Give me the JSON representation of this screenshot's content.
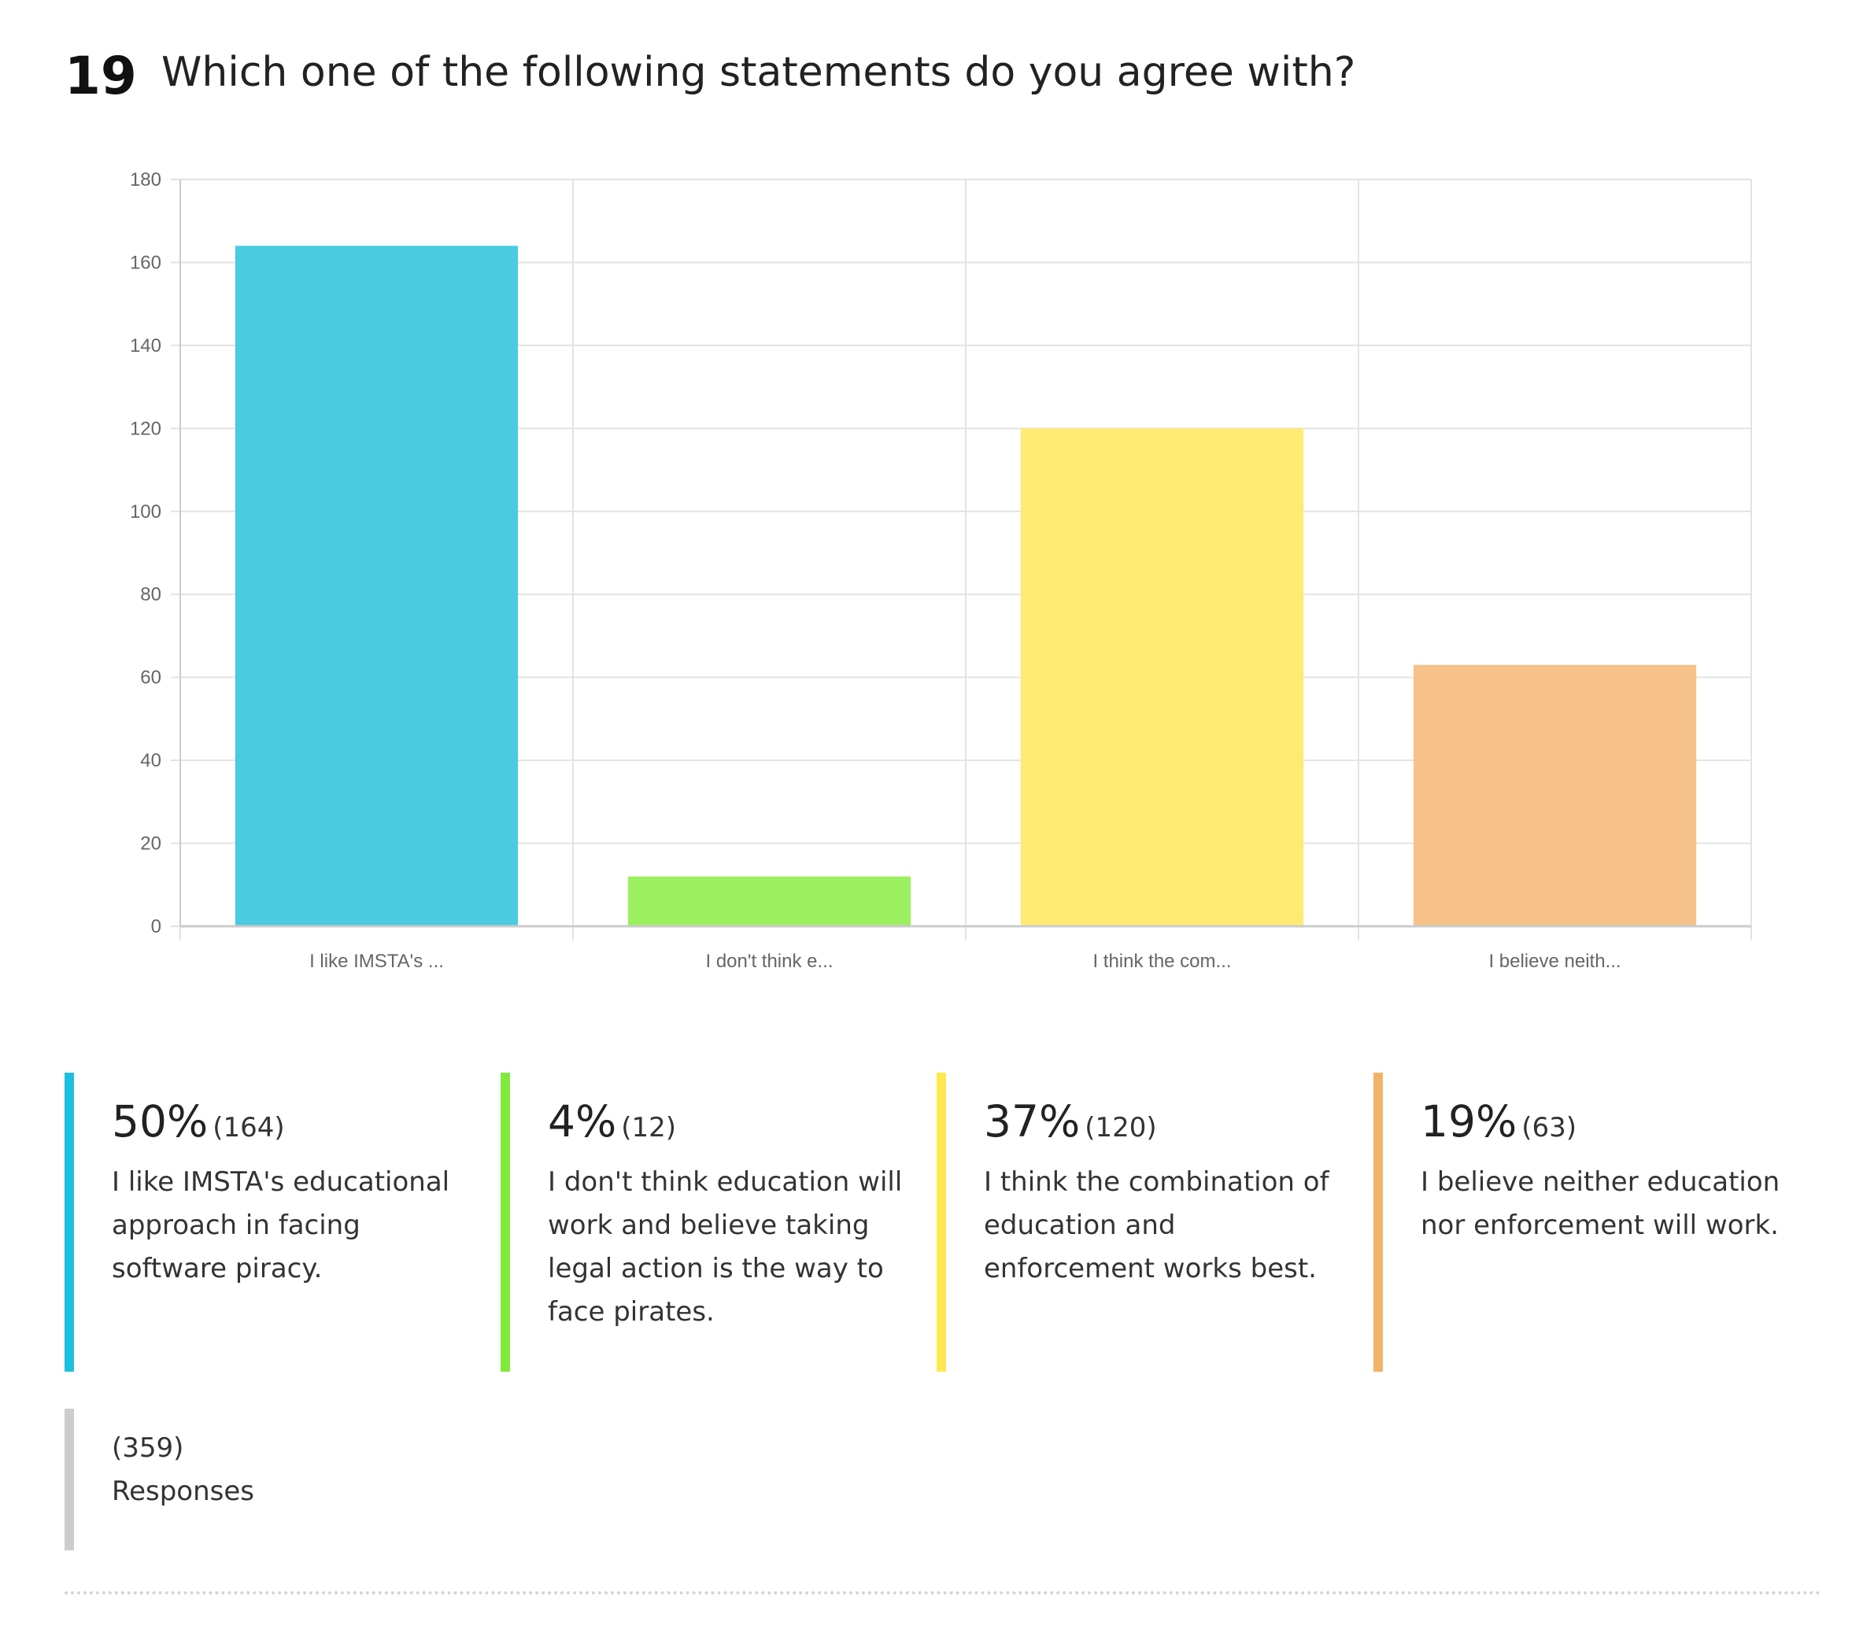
{
  "question": {
    "number": "19",
    "text": "Which one of the following statements do you agree with?"
  },
  "chart_data": {
    "type": "bar",
    "categories": [
      "I like IMSTA's ...",
      "I don't think e...",
      "I think the com...",
      "I believe neith..."
    ],
    "values": [
      164,
      12,
      120,
      63
    ],
    "colors": [
      "#4acbe0",
      "#9cf05f",
      "#ffea73",
      "#f6c28a"
    ],
    "ylim": [
      0,
      180
    ],
    "yticks": [
      0,
      20,
      40,
      60,
      80,
      100,
      120,
      140,
      160,
      180
    ],
    "grid": true,
    "xlabel": "",
    "ylabel": ""
  },
  "legend": [
    {
      "percent": "50%",
      "count": "(164)",
      "text": "I like IMSTA's educational approach in facing software piracy.",
      "color": "#1ebfdd"
    },
    {
      "percent": "4%",
      "count": "(12)",
      "text": "I don't think education will work and believe taking legal action is the way to face pirates.",
      "color": "#80e93c"
    },
    {
      "percent": "37%",
      "count": "(120)",
      "text": "I think the combination of education and enforcement works best.",
      "color": "#ffe84f"
    },
    {
      "percent": "19%",
      "count": "(63)",
      "text": "I believe neither education nor enforcement will work.",
      "color": "#f3b26a"
    }
  ],
  "responses": {
    "count": "(359)",
    "label": "Responses"
  }
}
